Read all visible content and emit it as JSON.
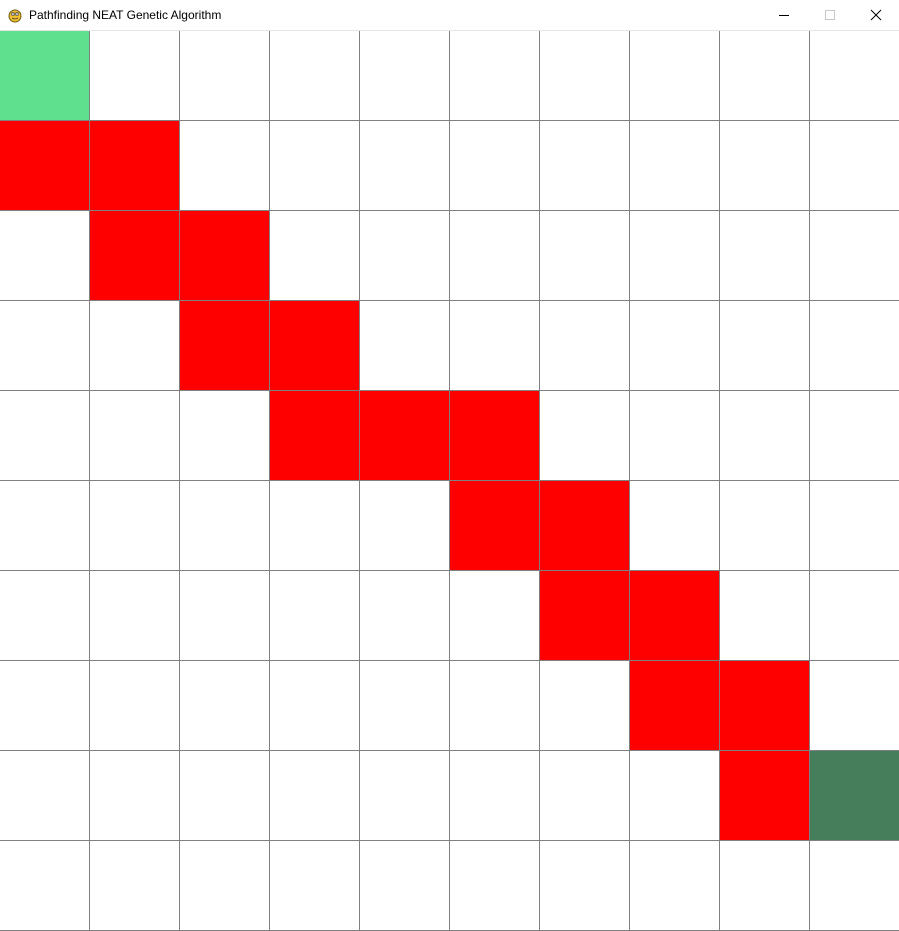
{
  "window": {
    "title": "Pathfinding NEAT Genetic Algorithm",
    "icon": "pygame-snake-icon",
    "controls": [
      "minimize-icon",
      "maximize-icon",
      "close-icon"
    ]
  },
  "grid": {
    "rows": 10,
    "cols": 10,
    "colors": {
      "empty": "#ffffff",
      "path": "#ff0000",
      "start": "#5ee08f",
      "goal": "#467e5c",
      "line": "#808080"
    },
    "start": [
      0,
      0
    ],
    "goal": [
      8,
      9
    ],
    "path_cells": [
      [
        1,
        0
      ],
      [
        1,
        1
      ],
      [
        2,
        1
      ],
      [
        2,
        2
      ],
      [
        3,
        2
      ],
      [
        3,
        3
      ],
      [
        4,
        3
      ],
      [
        4,
        4
      ],
      [
        4,
        5
      ],
      [
        5,
        5
      ],
      [
        5,
        6
      ],
      [
        6,
        6
      ],
      [
        6,
        7
      ],
      [
        7,
        7
      ],
      [
        7,
        8
      ],
      [
        8,
        8
      ]
    ]
  }
}
